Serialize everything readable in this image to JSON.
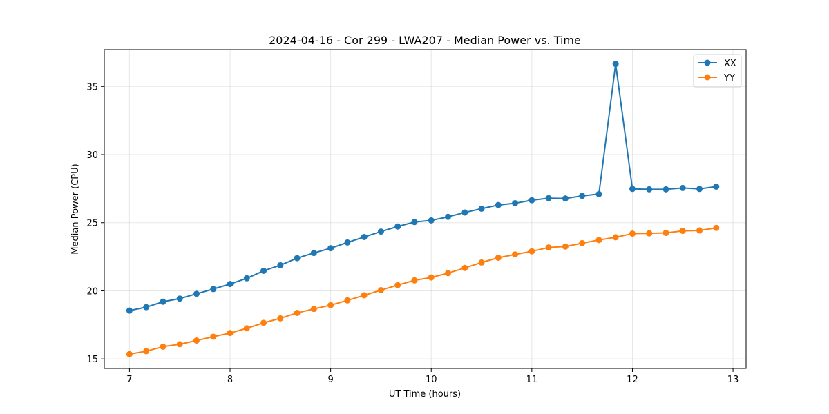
{
  "chart_data": {
    "type": "line",
    "title": "2024-04-16 - Cor 299 - LWA207 - Median Power vs. Time",
    "xlabel": "UT Time (hours)",
    "ylabel": "Median Power (CPU)",
    "xlim": [
      6.75,
      13.13
    ],
    "ylim": [
      14.3,
      37.7
    ],
    "xticks": [
      7,
      8,
      9,
      10,
      11,
      12,
      13
    ],
    "yticks": [
      15,
      20,
      25,
      30,
      35
    ],
    "grid": true,
    "legend_position": "top-right",
    "x": [
      7.0,
      7.1667,
      7.3333,
      7.5,
      7.6667,
      7.8333,
      8.0,
      8.1667,
      8.3333,
      8.5,
      8.6667,
      8.8333,
      9.0,
      9.1667,
      9.3333,
      9.5,
      9.6667,
      9.8333,
      10.0,
      10.1667,
      10.3333,
      10.5,
      10.6667,
      10.8333,
      11.0,
      11.1667,
      11.3333,
      11.5,
      11.6667,
      11.8333,
      12.0,
      12.1667,
      12.3333,
      12.5,
      12.6667,
      12.8333
    ],
    "series": [
      {
        "name": "XX",
        "color": "#1f77b4",
        "values": [
          18.55,
          18.8,
          19.2,
          19.43,
          19.78,
          20.13,
          20.5,
          20.92,
          21.47,
          21.88,
          22.4,
          22.78,
          23.13,
          23.55,
          23.95,
          24.35,
          24.72,
          25.05,
          25.17,
          25.43,
          25.75,
          26.03,
          26.3,
          26.43,
          26.65,
          26.8,
          26.78,
          26.97,
          27.1,
          36.65,
          27.48,
          27.45,
          27.45,
          27.55,
          27.48,
          27.65
        ]
      },
      {
        "name": "YY",
        "color": "#ff7f0e",
        "values": [
          15.35,
          15.57,
          15.9,
          16.08,
          16.35,
          16.63,
          16.9,
          17.25,
          17.65,
          17.98,
          18.38,
          18.67,
          18.95,
          19.3,
          19.67,
          20.05,
          20.42,
          20.77,
          20.98,
          21.3,
          21.68,
          22.08,
          22.43,
          22.67,
          22.9,
          23.18,
          23.25,
          23.5,
          23.73,
          23.93,
          24.2,
          24.22,
          24.25,
          24.4,
          24.43,
          24.62
        ]
      }
    ]
  }
}
